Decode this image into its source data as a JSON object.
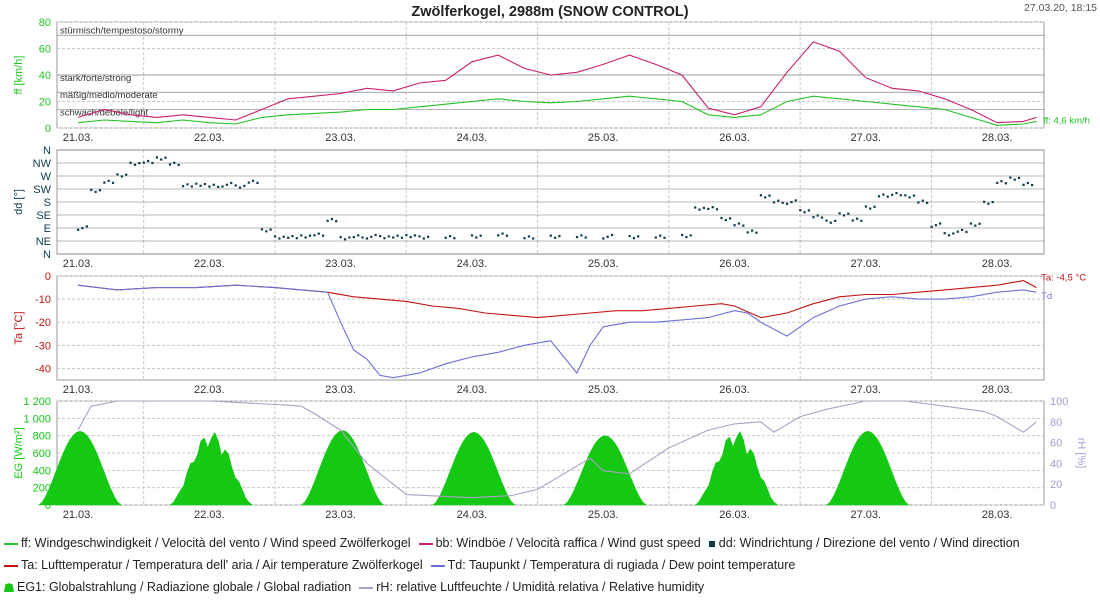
{
  "header": {
    "title": "Zwölferkogel, 2988m (SNOW CONTROL)",
    "timestamp": "27.03.20, 18:15"
  },
  "x_ticks": [
    "21.03.",
    "22.03.",
    "23.03.",
    "24.03.",
    "25.03.",
    "26.03.",
    "27.03.",
    "28.03."
  ],
  "colors": {
    "ff": "#22c322",
    "bb": "#cc1f6e",
    "dd": "#0d3b4a",
    "ta": "#c41414",
    "td": "#6f6fd9",
    "eg": "#14c814",
    "rh": "#a9a2c2",
    "grid": "#c8c8c8",
    "axis_rh": "#9f9fd0"
  },
  "chart_data": [
    {
      "type": "line",
      "ylabel": "ff [km/h]",
      "ylim": [
        0,
        80
      ],
      "yticks": [
        "0",
        "20",
        "40",
        "60",
        "80"
      ],
      "bands": [
        "stürmisch/tempestoso/stormy",
        "stark/forte/strong",
        "mäßig/medio/moderate",
        "schwach/debole/light"
      ],
      "end_label": "ff: 4,6 km/h",
      "series": [
        {
          "key": "ff",
          "name": "ff",
          "x": [
            0,
            0.2,
            0.4,
            0.6,
            0.8,
            1.0,
            1.2,
            1.4,
            1.6,
            1.8,
            2.0,
            2.2,
            2.4,
            2.6,
            2.8,
            3.0,
            3.2,
            3.4,
            3.6,
            3.8,
            4.0,
            4.2,
            4.4,
            4.6,
            4.8,
            5.0,
            5.2,
            5.4,
            5.6,
            5.8,
            6.0,
            6.2,
            6.4,
            6.6,
            6.8,
            7.0,
            7.2,
            7.3
          ],
          "y": [
            4,
            6,
            5,
            4,
            6,
            4,
            3,
            8,
            10,
            11,
            12,
            14,
            14,
            16,
            18,
            20,
            22,
            20,
            19,
            20,
            22,
            24,
            22,
            20,
            10,
            8,
            10,
            20,
            24,
            22,
            20,
            18,
            16,
            14,
            8,
            2,
            3,
            5
          ]
        },
        {
          "key": "bb",
          "name": "bb",
          "x": [
            0,
            0.2,
            0.4,
            0.6,
            0.8,
            1.0,
            1.2,
            1.4,
            1.6,
            1.8,
            2.0,
            2.2,
            2.4,
            2.6,
            2.8,
            3.0,
            3.2,
            3.4,
            3.6,
            3.8,
            4.0,
            4.2,
            4.4,
            4.6,
            4.8,
            5.0,
            5.2,
            5.4,
            5.6,
            5.8,
            6.0,
            6.2,
            6.4,
            6.6,
            6.8,
            7.0,
            7.2,
            7.3
          ],
          "y": [
            8,
            14,
            10,
            8,
            10,
            8,
            6,
            14,
            22,
            24,
            26,
            30,
            28,
            34,
            36,
            50,
            55,
            45,
            40,
            42,
            48,
            55,
            48,
            40,
            15,
            10,
            16,
            42,
            65,
            58,
            38,
            30,
            28,
            22,
            14,
            4,
            5,
            8
          ]
        }
      ]
    },
    {
      "type": "scatter",
      "ylabel": "dd [°]",
      "ylim": [
        0,
        360
      ],
      "yticks": [
        "N",
        "NE",
        "E",
        "SE",
        "S",
        "SW",
        "W",
        "NW",
        "N"
      ],
      "series": [
        {
          "key": "dd",
          "name": "dd",
          "x": [
            0,
            0.1,
            0.2,
            0.3,
            0.4,
            0.5,
            0.6,
            0.7,
            0.8,
            0.9,
            1.0,
            1.1,
            1.2,
            1.3,
            1.4,
            1.5,
            1.6,
            1.7,
            1.8,
            1.9,
            2.0,
            2.1,
            2.2,
            2.3,
            2.4,
            2.5,
            2.6,
            2.8,
            3.0,
            3.2,
            3.4,
            3.6,
            3.8,
            4.0,
            4.2,
            4.4,
            4.6,
            4.7,
            4.8,
            4.9,
            5.0,
            5.1,
            5.2,
            5.3,
            5.4,
            5.5,
            5.6,
            5.7,
            5.8,
            5.9,
            6.0,
            6.1,
            6.2,
            6.3,
            6.4,
            6.5,
            6.6,
            6.7,
            6.8,
            6.9,
            7.0,
            7.1,
            7.2
          ],
          "y": [
            90,
            220,
            250,
            270,
            315,
            320,
            330,
            310,
            240,
            240,
            235,
            240,
            235,
            250,
            80,
            60,
            60,
            60,
            65,
            120,
            55,
            60,
            60,
            60,
            60,
            60,
            60,
            60,
            60,
            65,
            60,
            60,
            60,
            60,
            60,
            60,
            60,
            160,
            160,
            120,
            100,
            80,
            200,
            180,
            180,
            150,
            130,
            110,
            140,
            120,
            160,
            200,
            210,
            200,
            180,
            100,
            70,
            80,
            100,
            180,
            250,
            260,
            240
          ]
        }
      ]
    },
    {
      "type": "line",
      "ylabel": "Ta [°C]",
      "ylim": [
        -45,
        0
      ],
      "yticks": [
        "0",
        "-10",
        "-20",
        "-30",
        "-40"
      ],
      "end_label_ta": "Ta: -4,5 °C",
      "end_label_td": "Td",
      "series": [
        {
          "key": "ta",
          "name": "Ta",
          "x": [
            0,
            0.3,
            0.6,
            0.9,
            1.2,
            1.5,
            1.7,
            1.9,
            2.1,
            2.3,
            2.5,
            2.7,
            2.9,
            3.1,
            3.3,
            3.5,
            3.7,
            3.9,
            4.1,
            4.3,
            4.5,
            4.7,
            4.9,
            5.0,
            5.2,
            5.4,
            5.6,
            5.8,
            6.0,
            6.2,
            6.4,
            6.6,
            6.8,
            7.0,
            7.2,
            7.3
          ],
          "y": [
            -4,
            -6,
            -5,
            -5,
            -4,
            -5,
            -6,
            -7,
            -9,
            -10,
            -11,
            -13,
            -14,
            -16,
            -17,
            -18,
            -17,
            -16,
            -15,
            -15,
            -14,
            -13,
            -12,
            -13,
            -18,
            -16,
            -12,
            -9,
            -8,
            -8,
            -7,
            -6,
            -5,
            -4,
            -2,
            -5
          ]
        },
        {
          "key": "td",
          "name": "Td",
          "x": [
            0,
            0.3,
            0.6,
            0.9,
            1.2,
            1.5,
            1.7,
            1.9,
            2.0,
            2.1,
            2.2,
            2.3,
            2.4,
            2.6,
            2.8,
            3.0,
            3.2,
            3.4,
            3.6,
            3.7,
            3.8,
            3.9,
            4.0,
            4.2,
            4.4,
            4.6,
            4.8,
            5.0,
            5.1,
            5.2,
            5.4,
            5.6,
            5.8,
            6.0,
            6.2,
            6.4,
            6.6,
            6.8,
            7.0,
            7.2,
            7.3
          ],
          "y": [
            -4,
            -6,
            -5,
            -5,
            -4,
            -5,
            -6,
            -7,
            -20,
            -32,
            -36,
            -43,
            -44,
            -42,
            -38,
            -35,
            -33,
            -30,
            -28,
            -35,
            -42,
            -30,
            -22,
            -20,
            -20,
            -19,
            -18,
            -15,
            -16,
            -20,
            -26,
            -18,
            -13,
            -10,
            -9,
            -10,
            -10,
            -9,
            -7,
            -6,
            -7
          ]
        }
      ]
    },
    {
      "type": "area",
      "ylabel": "EG [W/m²]",
      "ylim": [
        0,
        1200
      ],
      "yticks": [
        "0",
        "200",
        "400",
        "600",
        "800",
        "1 000",
        "1 200"
      ],
      "ylabel2": "rH [%]",
      "y2lim": [
        0,
        100
      ],
      "y2ticks": [
        "0",
        "20",
        "40",
        "60",
        "80",
        "100"
      ],
      "series": [
        {
          "key": "eg",
          "name": "EG",
          "day_peaks": [
            850,
            850,
            860,
            840,
            800,
            860,
            850
          ]
        },
        {
          "key": "rh",
          "name": "rH",
          "axis": "right",
          "x": [
            0,
            0.1,
            0.3,
            0.6,
            1.0,
            1.3,
            1.6,
            1.7,
            1.8,
            2.0,
            2.2,
            2.5,
            3.0,
            3.3,
            3.5,
            3.7,
            3.9,
            4.0,
            4.2,
            4.5,
            4.8,
            5.0,
            5.2,
            5.3,
            5.5,
            5.7,
            6.0,
            6.3,
            6.6,
            6.9,
            7.0,
            7.2,
            7.3
          ],
          "y": [
            72,
            95,
            100,
            100,
            100,
            98,
            96,
            95,
            88,
            72,
            40,
            10,
            7,
            9,
            15,
            30,
            45,
            33,
            30,
            55,
            72,
            78,
            80,
            70,
            85,
            92,
            100,
            100,
            95,
            90,
            85,
            70,
            80
          ]
        }
      ]
    }
  ],
  "legend": [
    [
      {
        "key": "ff",
        "style": "line",
        "text": "ff: Windgeschwindigkeit / Velocità del vento / Wind speed  Zwölferkogel"
      },
      {
        "key": "bb",
        "style": "line",
        "text": "bb: Windböe / Velocità raffica / Wind gust speed"
      },
      {
        "key": "dd",
        "style": "square",
        "text": "dd: Windrichtung / Direzione del vento / Wind direction"
      }
    ],
    [
      {
        "key": "ta",
        "style": "line",
        "text": "Ta: Lufttemperatur / Temperatura dell' aria / Air temperature  Zwölferkogel"
      },
      {
        "key": "td",
        "style": "line",
        "text": "Td: Taupunkt / Temperatura di rugiada / Dew point temperature"
      }
    ],
    [
      {
        "key": "eg",
        "style": "area",
        "text": "EG1: Globalstrahlung / Radiazione globale / Global radiation"
      },
      {
        "key": "rh",
        "style": "line",
        "text": "rH: relative Luftfeuchte / Umidità relativa / Relative humidity"
      }
    ]
  ]
}
